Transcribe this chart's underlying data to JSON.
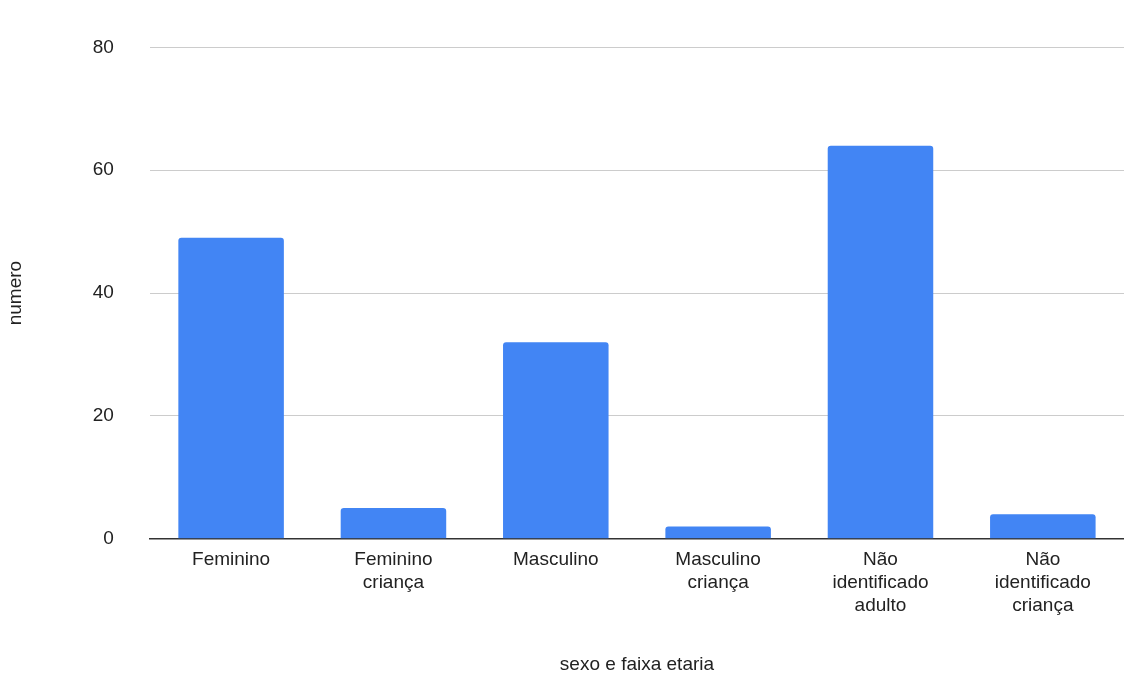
{
  "chart_data": {
    "type": "bar",
    "xlabel": "sexo e faixa etaria",
    "ylabel": "numero",
    "categories": [
      "Feminino",
      "Feminino criança",
      "Masculino",
      "Masculino criança",
      "Não identificado adulto",
      "Não identificado criança"
    ],
    "values": [
      49,
      5,
      32,
      2,
      64,
      4
    ],
    "color": "#4285f4",
    "ylim": [
      0,
      80
    ],
    "yticks": [
      0,
      20,
      40,
      60,
      80
    ],
    "grid": "y"
  }
}
